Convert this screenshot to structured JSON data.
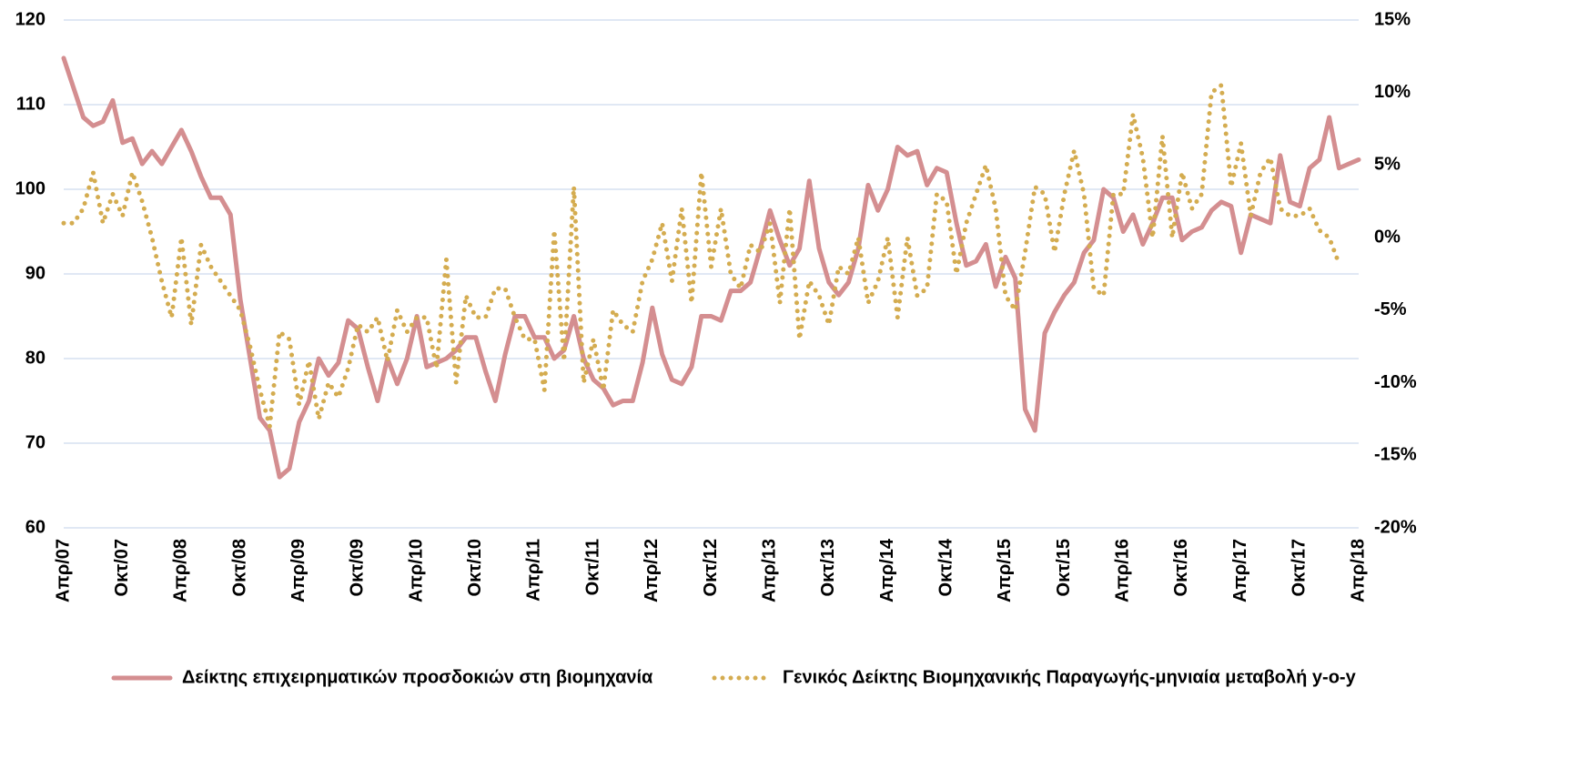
{
  "chart_data": {
    "type": "line",
    "categories": [
      "Απρ/07",
      null,
      null,
      null,
      null,
      null,
      "Οκτ/07",
      null,
      null,
      null,
      null,
      null,
      "Απρ/08",
      null,
      null,
      null,
      null,
      null,
      "Οκτ/08",
      null,
      null,
      null,
      null,
      null,
      "Απρ/09",
      null,
      null,
      null,
      null,
      null,
      "Οκτ/09",
      null,
      null,
      null,
      null,
      null,
      "Απρ/10",
      null,
      null,
      null,
      null,
      null,
      "Οκτ/10",
      null,
      null,
      null,
      null,
      null,
      "Απρ/11",
      null,
      null,
      null,
      null,
      null,
      "Οκτ/11",
      null,
      null,
      null,
      null,
      null,
      "Απρ/12",
      null,
      null,
      null,
      null,
      null,
      "Οκτ/12",
      null,
      null,
      null,
      null,
      null,
      "Απρ/13",
      null,
      null,
      null,
      null,
      null,
      "Οκτ/13",
      null,
      null,
      null,
      null,
      null,
      "Απρ/14",
      null,
      null,
      null,
      null,
      null,
      "Οκτ/14",
      null,
      null,
      null,
      null,
      null,
      "Απρ/15",
      null,
      null,
      null,
      null,
      null,
      "Οκτ/15",
      null,
      null,
      null,
      null,
      null,
      "Απρ/16",
      null,
      null,
      null,
      null,
      null,
      "Οκτ/16",
      null,
      null,
      null,
      null,
      null,
      "Απρ/17",
      null,
      null,
      null,
      null,
      null,
      "Οκτ/17",
      null,
      null,
      null,
      null,
      null,
      "Απρ/18"
    ],
    "series": [
      {
        "name": "Δείκτης επιχειρηματικών προσδοκιών στη βιομηχανία",
        "color": "#d48e90",
        "style": "solid",
        "values": [
          115.5,
          112,
          108.5,
          107.5,
          108,
          110.5,
          105.5,
          106,
          103,
          104.5,
          103,
          105,
          107,
          104.5,
          101.5,
          99,
          99,
          97,
          87,
          80,
          73,
          71.5,
          66,
          67,
          72.5,
          75,
          80,
          78,
          79.5,
          84.5,
          83.5,
          79,
          75,
          80,
          77,
          80,
          85,
          79,
          79.5,
          80,
          81,
          82.5,
          82.5,
          78.5,
          75,
          80.5,
          85,
          85,
          82.5,
          82.5,
          80,
          81,
          85,
          80,
          77.5,
          76.5,
          74.5,
          75,
          75,
          79.5,
          86,
          80.5,
          77.5,
          77,
          79,
          85,
          85,
          84.5,
          88,
          88,
          89,
          93,
          97.5,
          94,
          91,
          93,
          101,
          93,
          89,
          87.5,
          89,
          93,
          100.5,
          97.5,
          100,
          105,
          104,
          104.5,
          100.5,
          102.5,
          102,
          96,
          91,
          91.5,
          93.5,
          88.5,
          92,
          89.5,
          74,
          71.5,
          83,
          85.5,
          87.5,
          89,
          92.5,
          94,
          100,
          99,
          95,
          97,
          93.5,
          96,
          99,
          99,
          94,
          95,
          95.5,
          97.5,
          98.5,
          98,
          92.5,
          97,
          96.5,
          96,
          104,
          98.5,
          98,
          102.5,
          103.5,
          108.5,
          102.5,
          103,
          103.5
        ]
      },
      {
        "name": "Γενικός Δείκτης Βιομηχανικής Παραγωγής-μηνιαία μεταβολή y-o-y",
        "color": "#d4ac50",
        "style": "dotted",
        "axis": "y2",
        "values": [
          1,
          1,
          2,
          4.5,
          1,
          3,
          1.5,
          4.5,
          2.5,
          0,
          -3,
          -5.5,
          0,
          -6,
          -0.5,
          -2,
          -3,
          -4,
          -5,
          -7.5,
          -10.5,
          -13,
          -6.5,
          -7,
          -11.5,
          -8.5,
          -12.5,
          -10,
          -11,
          -9,
          -6,
          -6.5,
          -5.5,
          -8.5,
          -5,
          -6.5,
          -5.5,
          -5.5,
          -9,
          -1.5,
          -10,
          -4,
          -5.5,
          -5.5,
          -3.5,
          -3.5,
          -5.5,
          -7,
          -7,
          -10.5,
          0.5,
          -8.5,
          3.5,
          -10,
          -7,
          -10.5,
          -5,
          -6,
          -6.5,
          -3,
          -1.5,
          1,
          -3,
          2,
          -4.5,
          4.5,
          -2,
          2,
          -2.5,
          -3.5,
          -0.5,
          -1,
          1,
          -4.5,
          2,
          -7,
          -3,
          -4,
          -6,
          -2,
          -2.5,
          0,
          -4.5,
          -3,
          0,
          -5.5,
          0,
          -4,
          -3.5,
          3,
          2.5,
          -2.5,
          1,
          3,
          5,
          2,
          -4,
          -5,
          -1,
          3.5,
          3,
          -1,
          3,
          6,
          3,
          -3.5,
          -4,
          3,
          3,
          8.5,
          5.5,
          0,
          7,
          0,
          4.5,
          2,
          3,
          10,
          10.5,
          3.5,
          6.5,
          1.5,
          4.5,
          5.5,
          2,
          1.5,
          1.5,
          2,
          0.5,
          0,
          -1.8,
          null,
          null
        ]
      }
    ],
    "ylim": [
      60,
      120
    ],
    "yticks": [
      60,
      70,
      80,
      90,
      100,
      110,
      120
    ],
    "y2lim": [
      -20,
      15
    ],
    "y2ticks": [
      {
        "value": -20,
        "label": "-20%"
      },
      {
        "value": -15,
        "label": "-15%"
      },
      {
        "value": -10,
        "label": "-10%"
      },
      {
        "value": -5,
        "label": "-5%"
      },
      {
        "value": 0,
        "label": "0%"
      },
      {
        "value": 5,
        "label": "5%"
      },
      {
        "value": 10,
        "label": "10%"
      },
      {
        "value": 15,
        "label": "15%"
      }
    ],
    "grid": true,
    "legend": "bottom"
  }
}
